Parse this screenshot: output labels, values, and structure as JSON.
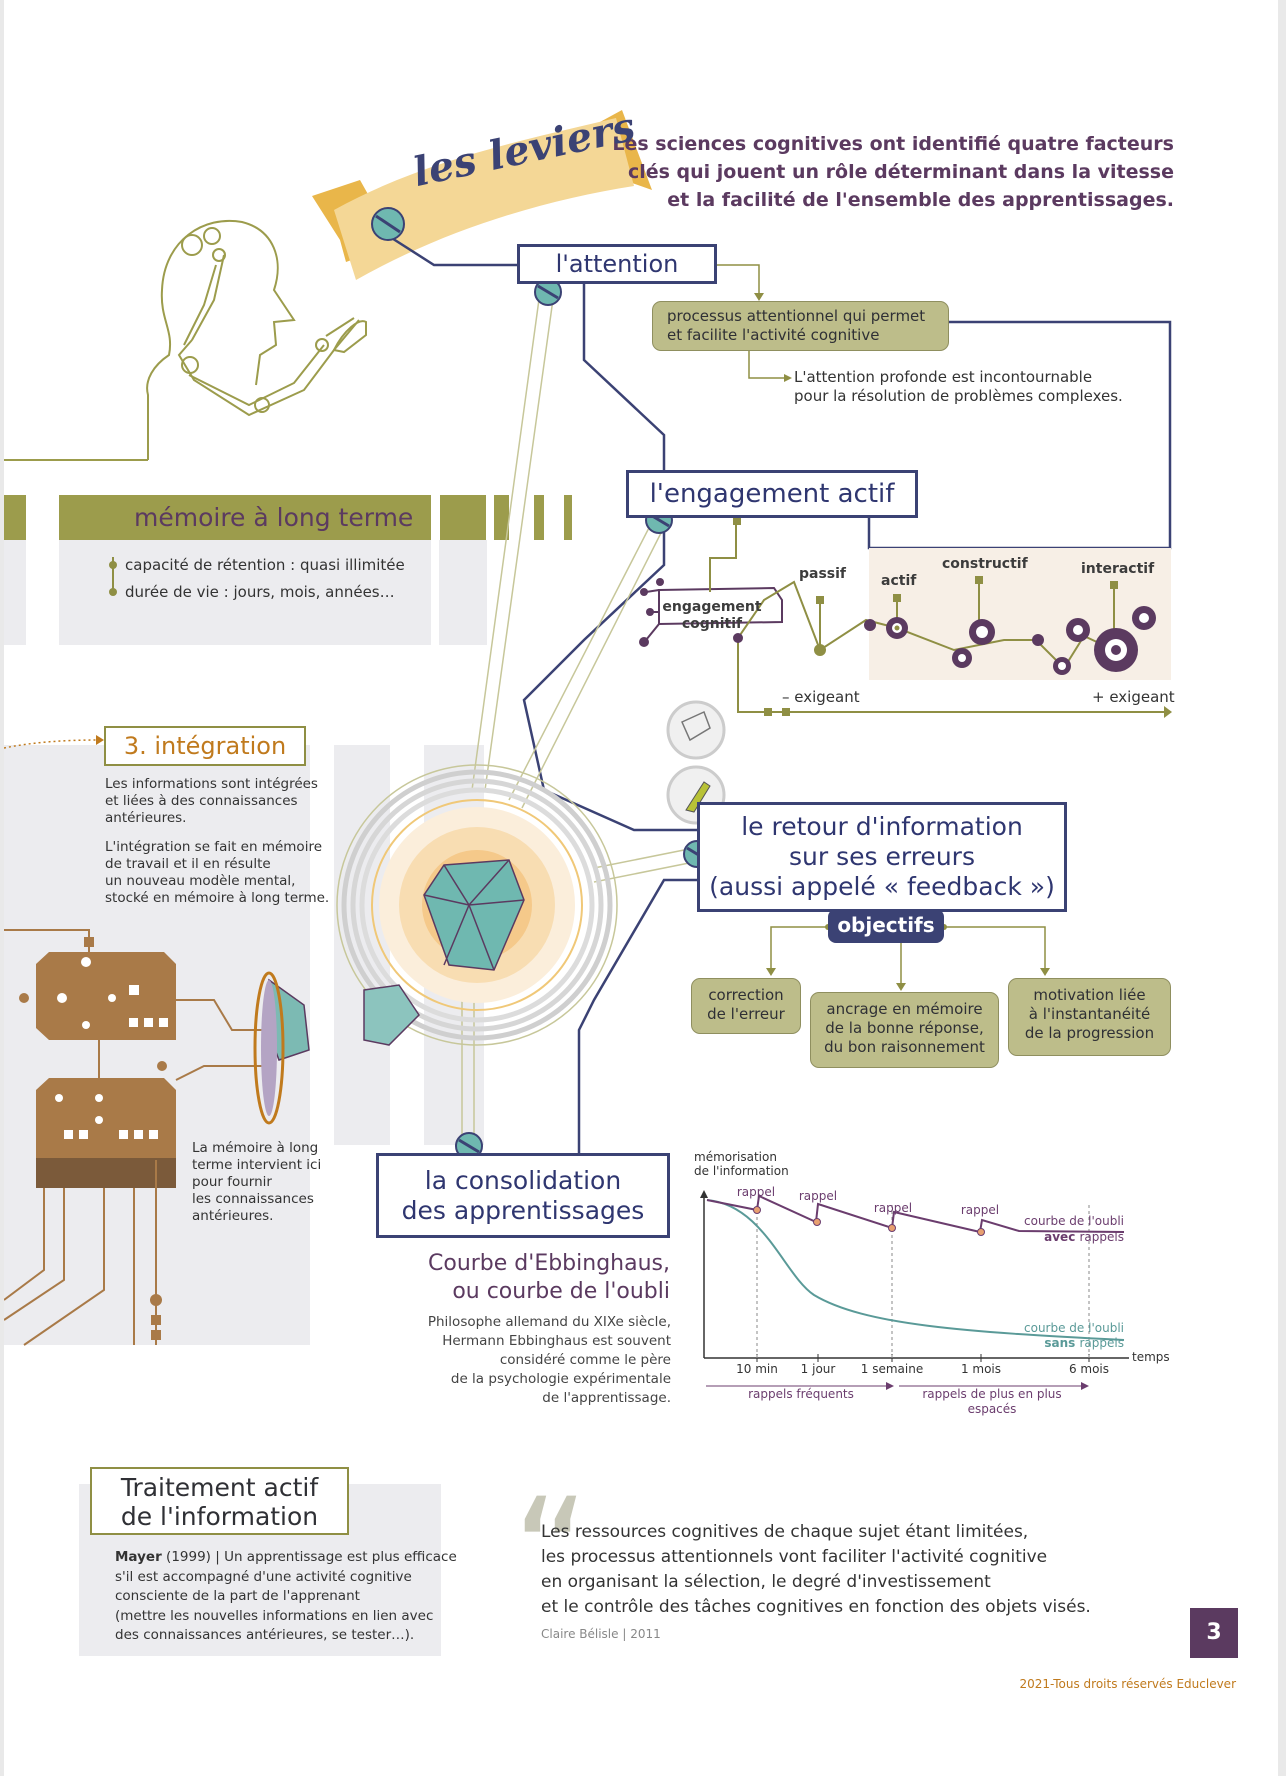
{
  "banner": {
    "title": "les leviers"
  },
  "intro": {
    "lines": [
      "Les sciences cognitives ont identifié quatre facteurs",
      "clés qui jouent un rôle déterminant dans la vitesse",
      "et la facilité de l'ensemble des apprentissages."
    ]
  },
  "attention": {
    "title": "l'attention",
    "process_lines": [
      "processus attentionnel qui permet",
      "et facilite l'activité cognitive"
    ],
    "note_lines": [
      "L'attention profonde est incontournable",
      "pour la résolution de problèmes complexes."
    ]
  },
  "engagement": {
    "title": "l'engagement actif",
    "cog_label_lines": [
      "engagement",
      "cognitif"
    ],
    "levels": [
      "passif",
      "actif",
      "constructif",
      "interactif"
    ],
    "scale_low": "– exigeant",
    "scale_high": "+ exigeant"
  },
  "memory": {
    "title": "mémoire à long terme",
    "items": [
      "capacité de rétention : quasi illimitée",
      "durée de vie : jours, mois, années…"
    ]
  },
  "integration": {
    "title": "3. intégration",
    "para1": [
      "Les informations sont intégrées",
      "et liées à des connaissances",
      "antérieures."
    ],
    "para2": [
      "L'intégration se fait en mémoire",
      "de travail et il en résulte",
      "un nouveau modèle mental,",
      "stocké en mémoire à long terme."
    ],
    "para3": [
      "La mémoire à long",
      "terme intervient ici",
      "pour fournir",
      "les connaissances",
      "antérieures."
    ]
  },
  "feedback": {
    "title_lines": [
      "le retour d'information",
      "sur ses erreurs",
      "(aussi appelé « feedback »)"
    ],
    "objectives_label": "objectifs",
    "objectives": [
      [
        "correction",
        "de l'erreur"
      ],
      [
        "ancrage en mémoire",
        "de la bonne réponse,",
        "du bon raisonnement"
      ],
      [
        "motivation liée",
        "à l'instantanéité",
        "de la progression"
      ]
    ]
  },
  "consolidation": {
    "title_lines": [
      "la consolidation",
      "des apprentissages"
    ]
  },
  "ebbinghaus": {
    "title_lines": [
      "Courbe d'Ebbinghaus,",
      "ou courbe de l'oubli"
    ],
    "text_lines": [
      "Philosophe allemand du XIXe siècle,",
      "Hermann Ebbinghaus est souvent",
      "considéré comme le père",
      "de la psychologie expérimentale",
      "de l'apprentissage."
    ]
  },
  "chart_data": {
    "type": "line",
    "ylabel_lines": [
      "mémorisation",
      "de l'information"
    ],
    "xlabel": "temps",
    "x_ticks": [
      "10 min",
      "1 jour",
      "1 semaine",
      "1 mois",
      "6 mois"
    ],
    "rappel_label": "rappel",
    "series": [
      {
        "name": "courbe de l'oubli avec rappels",
        "label_line1": "courbe de l'oubli",
        "label_bold": "avec",
        "label_rest": "rappels",
        "color": "#6b3d6e"
      },
      {
        "name": "courbe de l'oubli sans rappels",
        "label_line1": "courbe de l'oubli",
        "label_bold": "sans",
        "label_rest": "rappels",
        "color": "#5a9a98"
      }
    ],
    "range_labels": [
      "rappels fréquents",
      "rappels de plus en plus",
      "espacés"
    ]
  },
  "traitement": {
    "title_lines": [
      "Traitement actif",
      "de l'information"
    ],
    "author": "Mayer",
    "lines": [
      "(1999) | Un apprentissage est plus efficace",
      "s'il est accompagné d'une activité cognitive",
      "consciente de la part de l'apprenant",
      "(mettre les nouvelles informations en lien avec",
      "des connaissances antérieures, se tester…)."
    ]
  },
  "quote": {
    "lines": [
      "Les ressources cognitives de chaque sujet étant limitées,",
      "les processus attentionnels vont faciliter l'activité cognitive",
      "en organisant la sélection, le degré d'investissement",
      "et le contrôle des tâches cognitives en fonction des objets visés."
    ],
    "author": "Claire Bélisle | 2011"
  },
  "page_number": "3",
  "copyright": "2021-Tous droits réservés Educlever",
  "colors": {
    "navy": "#3b4274",
    "purple": "#5b3a60",
    "olive": "#8f8f44",
    "olive_light": "#bdbd8a",
    "orange": "#c07a1d",
    "teal": "#5a9a98",
    "copper": "#a97a48"
  }
}
